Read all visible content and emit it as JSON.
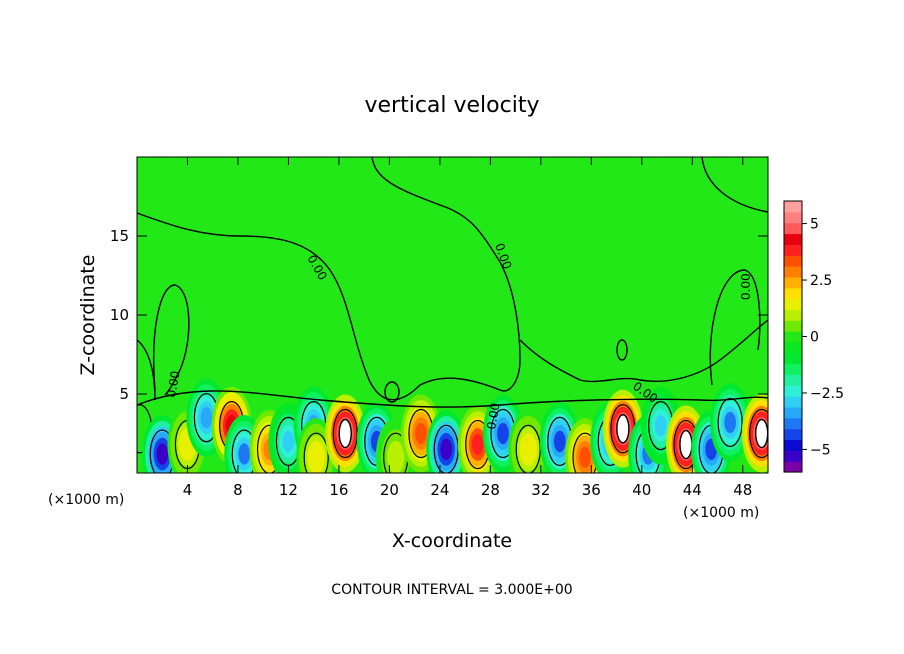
{
  "chart_data": {
    "type": "heatmap",
    "title": "vertical velocity",
    "xlabel": "X-coordinate",
    "ylabel": "Z-coordinate",
    "x_unit_left": "(×1000 m)",
    "x_unit_right": "(×1000 m)",
    "xlim": [
      0,
      50
    ],
    "ylim": [
      0,
      20
    ],
    "x_ticks": [
      4,
      8,
      12,
      16,
      20,
      24,
      28,
      32,
      36,
      40,
      44,
      48
    ],
    "y_ticks": [
      5,
      10,
      15
    ],
    "colorbar": {
      "range": [
        -6,
        6
      ],
      "levels": [
        -6,
        -5.5,
        -5,
        -4.5,
        -4,
        -3.5,
        -3,
        -2.5,
        -2,
        -1.5,
        -1,
        -0.5,
        0,
        0.5,
        1,
        1.5,
        2,
        2.5,
        3,
        3.5,
        4,
        4.5,
        5,
        5.5,
        6
      ],
      "colors": [
        "#7a00a8",
        "#3a00c8",
        "#0a0ad0",
        "#1444e8",
        "#1e78f4",
        "#28a8f8",
        "#30d0f4",
        "#30f0d8",
        "#20f0a0",
        "#10f060",
        "#00e830",
        "#08e820",
        "#22e818",
        "#70e800",
        "#b8f000",
        "#e8f000",
        "#ffe000",
        "#ffb000",
        "#ff8000",
        "#ff5000",
        "#ff2020",
        "#e80010",
        "#ff5a5a",
        "#ff8080",
        "#ffa0a0"
      ],
      "tick_labels": [
        "5",
        "2.5",
        "0",
        "−2.5",
        "−5"
      ],
      "tick_values": [
        5,
        2.5,
        0,
        -2.5,
        -5
      ]
    },
    "contour_label": "0.00",
    "contour_interval_text": "CONTOUR INTERVAL = 3.000E+00",
    "cells": [
      {
        "x": 0.2,
        "z": 2.8,
        "w": 0.3
      },
      {
        "x": 2.0,
        "z": 1.2,
        "w": -5.0
      },
      {
        "x": 4.0,
        "z": 1.8,
        "w": 2.0
      },
      {
        "x": 5.5,
        "z": 3.5,
        "w": -3.0
      },
      {
        "x": 7.5,
        "z": 3.0,
        "w": 5.0
      },
      {
        "x": 8.5,
        "z": 1.2,
        "w": -3.5
      },
      {
        "x": 10.5,
        "z": 1.5,
        "w": 3.5
      },
      {
        "x": 12.0,
        "z": 2.0,
        "w": -2.5
      },
      {
        "x": 14.0,
        "z": 3.0,
        "w": -3.0
      },
      {
        "x": 14.2,
        "z": 1.0,
        "w": 2.0
      },
      {
        "x": 16.5,
        "z": 2.5,
        "w": 6.5
      },
      {
        "x": 19.0,
        "z": 2.0,
        "w": -4.0
      },
      {
        "x": 20.5,
        "z": 1.0,
        "w": 1.5
      },
      {
        "x": 22.5,
        "z": 2.5,
        "w": 4.0
      },
      {
        "x": 24.5,
        "z": 1.5,
        "w": -5.0
      },
      {
        "x": 27.0,
        "z": 1.8,
        "w": 4.5
      },
      {
        "x": 29.0,
        "z": 2.5,
        "w": -4.0
      },
      {
        "x": 31.0,
        "z": 1.5,
        "w": 2.0
      },
      {
        "x": 33.5,
        "z": 2.0,
        "w": -4.0
      },
      {
        "x": 35.5,
        "z": 1.0,
        "w": 4.0
      },
      {
        "x": 37.5,
        "z": 2.0,
        "w": -3.5
      },
      {
        "x": 38.5,
        "z": 2.8,
        "w": 6.5
      },
      {
        "x": 40.5,
        "z": 1.2,
        "w": -3.5
      },
      {
        "x": 41.5,
        "z": 3.0,
        "w": -2.5
      },
      {
        "x": 43.5,
        "z": 1.8,
        "w": 6.5
      },
      {
        "x": 45.5,
        "z": 1.5,
        "w": -4.0
      },
      {
        "x": 47.0,
        "z": 3.2,
        "w": -3.5
      },
      {
        "x": 49.5,
        "z": 2.5,
        "w": 6.5
      }
    ]
  }
}
